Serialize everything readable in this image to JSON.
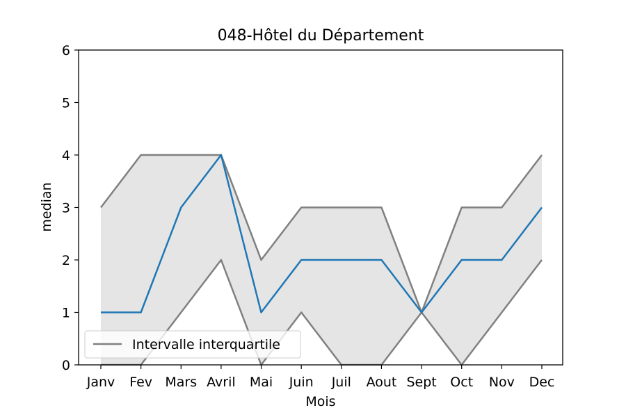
{
  "chart_data": {
    "type": "line",
    "title": "048-Hôtel du Département",
    "xlabel": "Mois",
    "ylabel": "median",
    "categories": [
      "Janv",
      "Fev",
      "Mars",
      "Avril",
      "Mai",
      "Juin",
      "Juil",
      "Aout",
      "Sept",
      "Oct",
      "Nov",
      "Dec"
    ],
    "ylim": [
      0,
      6
    ],
    "yticks": [
      "0",
      "1",
      "2",
      "3",
      "4",
      "5",
      "6"
    ],
    "grid": false,
    "legend": {
      "location": "lower-left",
      "entries": [
        "Intervalle interquartile"
      ]
    },
    "series": [
      {
        "role": "median",
        "values": [
          1,
          1,
          3,
          4,
          1,
          2,
          2,
          2,
          1,
          2,
          2,
          3
        ]
      },
      {
        "name": "Intervalle interquartile",
        "role": "q3",
        "values": [
          3,
          4,
          4,
          4,
          2,
          3,
          3,
          3,
          1,
          3,
          3,
          4
        ]
      },
      {
        "role": "q1",
        "values": [
          0,
          0,
          1,
          2,
          0,
          1,
          0,
          0,
          1,
          0,
          1,
          2
        ]
      }
    ],
    "colors": {
      "median": "#1f77b4",
      "quartile": "#808080",
      "band": "#e5e5e5"
    }
  }
}
